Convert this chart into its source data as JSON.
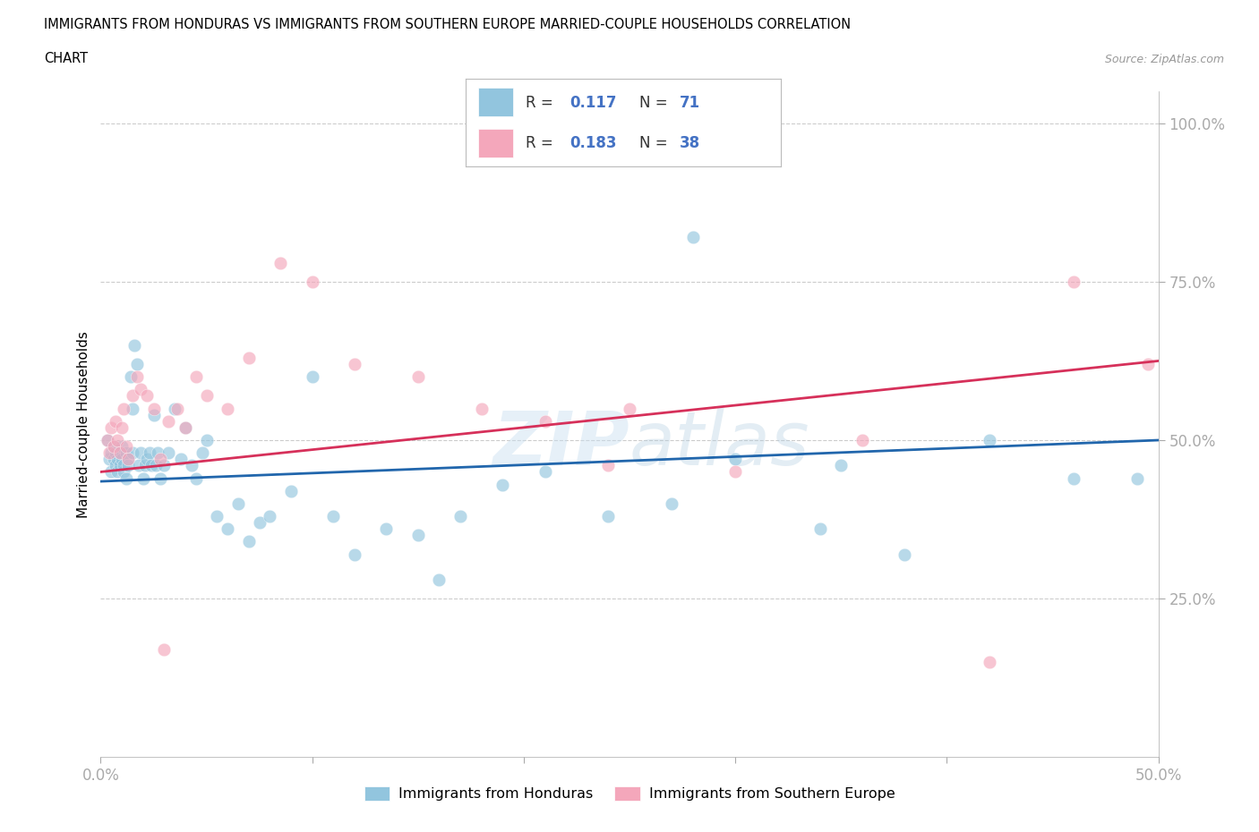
{
  "title_line1": "IMMIGRANTS FROM HONDURAS VS IMMIGRANTS FROM SOUTHERN EUROPE MARRIED-COUPLE HOUSEHOLDS CORRELATION",
  "title_line2": "CHART",
  "source": "Source: ZipAtlas.com",
  "ylabel": "Married-couple Households",
  "xlim": [
    0.0,
    0.5
  ],
  "ylim": [
    0.0,
    1.05
  ],
  "ytick_positions": [
    0.25,
    0.5,
    0.75,
    1.0
  ],
  "ytick_labels": [
    "25.0%",
    "50.0%",
    "75.0%",
    "100.0%"
  ],
  "xtick_positions": [
    0.0,
    0.5
  ],
  "xtick_labels": [
    "0.0%",
    "50.0%"
  ],
  "R_blue": 0.117,
  "N_blue": 71,
  "R_pink": 0.183,
  "N_pink": 38,
  "blue_color": "#92c5de",
  "pink_color": "#f4a7bb",
  "blue_line_color": "#2166ac",
  "pink_line_color": "#d6305a",
  "legend_label_blue": "Immigrants from Honduras",
  "legend_label_pink": "Immigrants from Southern Europe",
  "blue_line_y0": 0.435,
  "blue_line_y1": 0.5,
  "pink_line_y0": 0.45,
  "pink_line_y1": 0.625,
  "blue_x": [
    0.003,
    0.004,
    0.005,
    0.005,
    0.006,
    0.006,
    0.007,
    0.007,
    0.008,
    0.008,
    0.009,
    0.009,
    0.01,
    0.01,
    0.011,
    0.011,
    0.012,
    0.012,
    0.013,
    0.013,
    0.014,
    0.015,
    0.015,
    0.016,
    0.017,
    0.018,
    0.019,
    0.02,
    0.021,
    0.022,
    0.023,
    0.024,
    0.025,
    0.026,
    0.027,
    0.028,
    0.03,
    0.032,
    0.035,
    0.038,
    0.04,
    0.043,
    0.045,
    0.048,
    0.05,
    0.055,
    0.06,
    0.065,
    0.07,
    0.075,
    0.08,
    0.09,
    0.1,
    0.11,
    0.12,
    0.135,
    0.15,
    0.17,
    0.19,
    0.21,
    0.24,
    0.27,
    0.3,
    0.34,
    0.38,
    0.42,
    0.46,
    0.49,
    0.35,
    0.28,
    0.16
  ],
  "blue_y": [
    0.5,
    0.47,
    0.48,
    0.45,
    0.47,
    0.49,
    0.46,
    0.48,
    0.45,
    0.47,
    0.46,
    0.48,
    0.47,
    0.49,
    0.45,
    0.46,
    0.48,
    0.44,
    0.47,
    0.46,
    0.6,
    0.55,
    0.48,
    0.65,
    0.62,
    0.46,
    0.48,
    0.44,
    0.46,
    0.47,
    0.48,
    0.46,
    0.54,
    0.46,
    0.48,
    0.44,
    0.46,
    0.48,
    0.55,
    0.47,
    0.52,
    0.46,
    0.44,
    0.48,
    0.5,
    0.38,
    0.36,
    0.4,
    0.34,
    0.37,
    0.38,
    0.42,
    0.6,
    0.38,
    0.32,
    0.36,
    0.35,
    0.38,
    0.43,
    0.45,
    0.38,
    0.4,
    0.47,
    0.36,
    0.32,
    0.5,
    0.44,
    0.44,
    0.46,
    0.82,
    0.28
  ],
  "pink_x": [
    0.003,
    0.004,
    0.005,
    0.006,
    0.007,
    0.008,
    0.009,
    0.01,
    0.011,
    0.012,
    0.013,
    0.015,
    0.017,
    0.019,
    0.022,
    0.025,
    0.028,
    0.032,
    0.036,
    0.04,
    0.045,
    0.05,
    0.06,
    0.07,
    0.085,
    0.1,
    0.12,
    0.15,
    0.18,
    0.21,
    0.25,
    0.3,
    0.36,
    0.42,
    0.46,
    0.495,
    0.24,
    0.03
  ],
  "pink_y": [
    0.5,
    0.48,
    0.52,
    0.49,
    0.53,
    0.5,
    0.48,
    0.52,
    0.55,
    0.49,
    0.47,
    0.57,
    0.6,
    0.58,
    0.57,
    0.55,
    0.47,
    0.53,
    0.55,
    0.52,
    0.6,
    0.57,
    0.55,
    0.63,
    0.78,
    0.75,
    0.62,
    0.6,
    0.55,
    0.53,
    0.55,
    0.45,
    0.5,
    0.15,
    0.75,
    0.62,
    0.46,
    0.17
  ]
}
